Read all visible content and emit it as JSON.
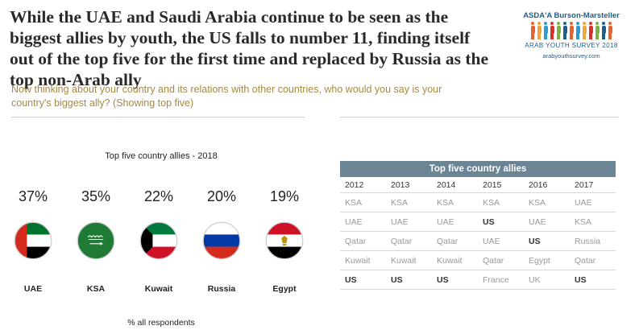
{
  "headline": "While the UAE and Saudi Arabia continue to be seen as the biggest allies by youth, the US falls to number 11, finding itself out of the top five for the first time and replaced by Russia as the top non-Arab ally",
  "logo": {
    "brand": "ASDA'A Burson-Marsteller",
    "survey": "ARAB YOUTH SURVEY 2018",
    "url": "arabyouthsurvey.com",
    "figure_colors": [
      "#e8612c",
      "#f2a33a",
      "#2d9bd3",
      "#d8322a",
      "#7bb342",
      "#1f5d8c",
      "#e8612c",
      "#2d9bd3",
      "#f2a33a",
      "#d8322a",
      "#7bb342",
      "#1f5d8c",
      "#e8612c"
    ]
  },
  "question": "Now thinking about your country and its relations with other countries, who would you say is your country's biggest ally? (Showing top five)",
  "chart_data": [
    {
      "type": "bar",
      "title": "Top five country allies - 2018",
      "categories": [
        "UAE",
        "KSA",
        "Kuwait",
        "Russia",
        "Egypt"
      ],
      "values": [
        37,
        35,
        22,
        20,
        19
      ],
      "value_labels": [
        "37%",
        "35%",
        "22%",
        "20%",
        "19%"
      ],
      "footnote": "% all respondents"
    },
    {
      "type": "table",
      "title": "Top five country allies",
      "columns": [
        "2012",
        "2013",
        "2014",
        "2015",
        "2016",
        "2017"
      ],
      "rows": [
        [
          "KSA",
          "KSA",
          "KSA",
          "KSA",
          "KSA",
          "UAE"
        ],
        [
          "UAE",
          "UAE",
          "UAE",
          "US",
          "UAE",
          "KSA"
        ],
        [
          "Qatar",
          "Qatar",
          "Qatar",
          "UAE",
          "US",
          "Russia"
        ],
        [
          "Kuwait",
          "Kuwait",
          "Kuwait",
          "Qatar",
          "Egypt",
          "Qatar"
        ],
        [
          "US",
          "US",
          "US",
          "France",
          "UK",
          "US"
        ]
      ],
      "highlight": "US"
    }
  ],
  "flags": [
    "uae-flag",
    "ksa-flag",
    "kuwait-flag",
    "russia-flag",
    "egypt-flag"
  ],
  "colors": {
    "question": "#a48a43",
    "table_header": "#6b8595",
    "uae_red": "#d52b1e",
    "green": "#00732f",
    "ksa_green": "#1f7a35",
    "kuwait_green": "#007a3d",
    "kuwait_red": "#ce1126",
    "russia_blue": "#0039a6",
    "russia_red": "#d52b1e",
    "egypt_red": "#ce1126",
    "egypt_gold": "#c09300"
  }
}
